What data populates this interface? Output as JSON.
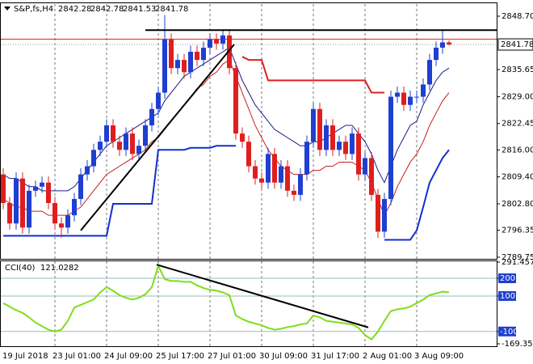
{
  "chart_data": {
    "type": "candlestick",
    "title": "S&P,fs,H4",
    "categories": [
      "19 Jul 2018",
      null,
      null,
      null,
      null,
      null,
      null,
      null,
      "23 Jul 01:00",
      null,
      null,
      null,
      null,
      null,
      null,
      null,
      "24 Jul 09:00",
      null,
      null,
      null,
      null,
      null,
      null,
      null,
      "25 Jul 17:00",
      null,
      null,
      null,
      null,
      null,
      null,
      null,
      "27 Jul 01:00",
      null,
      null,
      null,
      null,
      null,
      null,
      null,
      "30 Jul 09:00",
      null,
      null,
      null,
      null,
      null,
      null,
      null,
      "31 Jul 17:00",
      null,
      null,
      null,
      null,
      null,
      null,
      null,
      "2 Aug 01:00",
      null,
      null,
      null,
      null,
      null,
      null,
      null,
      "3 Aug 09:00",
      null,
      null,
      null,
      null,
      null
    ],
    "ohlc": [
      [
        2810,
        2811.5,
        2801.5,
        2803
      ],
      [
        2803,
        2804.5,
        2796.5,
        2798
      ],
      [
        2798,
        2810.5,
        2796.5,
        2809
      ],
      [
        2809,
        2810.5,
        2795.5,
        2797
      ],
      [
        2797,
        2807.5,
        2795.5,
        2806
      ],
      [
        2806,
        2808.5,
        2804.5,
        2807
      ],
      [
        2807,
        2809.5,
        2805.5,
        2808
      ],
      [
        2808,
        2809.5,
        2801.5,
        2803
      ],
      [
        2803,
        2804.5,
        2796.5,
        2798
      ],
      [
        2798,
        2799.5,
        2794.5,
        2797
      ],
      [
        2797,
        2801.5,
        2795.5,
        2800
      ],
      [
        2800,
        2805.5,
        2798.5,
        2804
      ],
      [
        2804,
        2811.5,
        2802.5,
        2810
      ],
      [
        2810,
        2813.5,
        2808.5,
        2812
      ],
      [
        2812,
        2817.5,
        2810.5,
        2816
      ],
      [
        2816,
        2819.5,
        2814.5,
        2818
      ],
      [
        2818,
        2823.5,
        2816.5,
        2822
      ],
      [
        2822,
        2823.5,
        2816.5,
        2818
      ],
      [
        2818,
        2819.5,
        2814.5,
        2816
      ],
      [
        2816,
        2821.5,
        2814.5,
        2820
      ],
      [
        2820,
        2821.5,
        2813.5,
        2815
      ],
      [
        2815,
        2818.5,
        2813.5,
        2817
      ],
      [
        2817,
        2823.5,
        2815.5,
        2822
      ],
      [
        2822,
        2827.5,
        2820.5,
        2826
      ],
      [
        2826,
        2831.5,
        2824.5,
        2830
      ],
      [
        2830,
        2849,
        2828.5,
        2843
      ],
      [
        2843,
        2844.5,
        2834.5,
        2836
      ],
      [
        2836,
        2839.5,
        2834.5,
        2838
      ],
      [
        2838,
        2839.5,
        2833.5,
        2835
      ],
      [
        2835,
        2841.5,
        2833.5,
        2840
      ],
      [
        2840,
        2841.5,
        2836.5,
        2838
      ],
      [
        2838,
        2842.5,
        2836.5,
        2841
      ],
      [
        2841,
        2844.5,
        2839.5,
        2843
      ],
      [
        2843,
        2844.5,
        2840.5,
        2842
      ],
      [
        2842,
        2845.5,
        2840.5,
        2844
      ],
      [
        2844,
        2845.5,
        2834.5,
        2836
      ],
      [
        2836,
        2837.5,
        2818.5,
        2820
      ],
      [
        2820,
        2821.5,
        2816.5,
        2818
      ],
      [
        2818,
        2819.5,
        2810.5,
        2812
      ],
      [
        2812,
        2813.5,
        2807.5,
        2809
      ],
      [
        2809,
        2810.5,
        2806.5,
        2808
      ],
      [
        2808,
        2816.5,
        2806.5,
        2815
      ],
      [
        2815,
        2816.5,
        2806.5,
        2808
      ],
      [
        2808,
        2813.5,
        2806.5,
        2812
      ],
      [
        2812,
        2813.5,
        2804.5,
        2806
      ],
      [
        2806,
        2807.5,
        2803.5,
        2805
      ],
      [
        2805,
        2811.5,
        2803.5,
        2810
      ],
      [
        2810,
        2819.5,
        2808.5,
        2818
      ],
      [
        2818,
        2827.5,
        2816.5,
        2826
      ],
      [
        2826,
        2827.5,
        2814.5,
        2816
      ],
      [
        2816,
        2823.5,
        2814.5,
        2822
      ],
      [
        2822,
        2823.5,
        2814.5,
        2816
      ],
      [
        2816,
        2819.5,
        2814.5,
        2818
      ],
      [
        2818,
        2819.5,
        2813.5,
        2815
      ],
      [
        2815,
        2821.5,
        2813.5,
        2820
      ],
      [
        2820,
        2821.5,
        2808.5,
        2810
      ],
      [
        2810,
        2815.5,
        2808.5,
        2814
      ],
      [
        2814,
        2815.5,
        2803.5,
        2805
      ],
      [
        2805,
        2806.5,
        2794.5,
        2796
      ],
      [
        2796,
        2805.5,
        2794.5,
        2804
      ],
      [
        2804,
        2830.5,
        2802.5,
        2829
      ],
      [
        2829,
        2831.5,
        2827.5,
        2830
      ],
      [
        2830,
        2831.5,
        2825.5,
        2827
      ],
      [
        2827,
        2830.5,
        2825.5,
        2829
      ],
      [
        2829,
        2830.5,
        2827.5,
        2829
      ],
      [
        2829,
        2833.5,
        2827.5,
        2832
      ],
      [
        2832,
        2839.5,
        2830.5,
        2838
      ],
      [
        2838,
        2842.5,
        2836.5,
        2841
      ],
      [
        2841,
        2845.5,
        2839.5,
        2842.28
      ],
      [
        2842.28,
        2842.78,
        2841.53,
        2841.78
      ]
    ],
    "up_color": "#1f3fd0",
    "down_color": "#e01e1e",
    "ylim": [
      2789.35,
      2851.67
    ],
    "yticks": [
      {
        "value": 2848.7,
        "label": "2848.70"
      },
      2835.65,
      {
        "value": 2829,
        "label": "2829.00"
      },
      2822.45,
      {
        "value": 2816,
        "label": "2816.00"
      },
      {
        "value": 2809.4,
        "label": "2809.40"
      },
      {
        "value": 2802.8,
        "label": "2802.80"
      },
      2796.35,
      2789.75
    ],
    "last_price": 2841.78,
    "ask_line": 2843.1,
    "lines": [
      {
        "color": "#1a1a8c",
        "width": 1,
        "values": [
          2810,
          2809,
          2809,
          2808,
          2807,
          2807,
          2806,
          2806,
          2806,
          2806,
          2806,
          2807,
          2809,
          2811,
          2813,
          2815,
          2817,
          2818,
          2819,
          2820,
          2821,
          2822,
          2823,
          2824,
          2825,
          2828,
          2830,
          2832,
          2834,
          2835,
          2836,
          2837,
          2838,
          2839,
          2840,
          2841,
          2837,
          2833,
          2830,
          2827,
          2825,
          2823,
          2821,
          2820,
          2819,
          2818,
          2817,
          2817,
          2818,
          2818,
          2819,
          2820,
          2821,
          2822,
          2822,
          2820,
          2818,
          2815,
          2811,
          2808,
          2812,
          2816,
          2819,
          2822,
          2823,
          2827,
          2830,
          2833,
          2835,
          2836
        ]
      },
      {
        "color": "#c81e1e",
        "width": 1,
        "values": [
          2804,
          2803,
          2802,
          2802,
          2801,
          2801,
          2801,
          2800,
          2800,
          2800,
          2800,
          2801,
          2802,
          2804,
          2806,
          2808,
          2810,
          2811,
          2812,
          2813,
          2814,
          2815,
          2816,
          2818,
          2819,
          2821,
          2823,
          2825,
          2827,
          2829,
          2831,
          2832,
          2834,
          2835,
          2837,
          2838,
          2834,
          2830,
          2826,
          2822,
          2819,
          2816,
          2814,
          2812,
          2811,
          2810,
          2810,
          2810,
          2811,
          2811,
          2812,
          2812,
          2813,
          2813,
          2813,
          2812,
          2811,
          2808,
          2804,
          2800,
          2803,
          2807,
          2810,
          2813,
          2815,
          2818,
          2822,
          2825,
          2828,
          2830
        ]
      },
      {
        "color": "#1030d0",
        "width": 2,
        "values": [
          2795,
          2795,
          2795,
          2795,
          2795,
          2795,
          2795,
          2795,
          2795,
          2795,
          2795,
          2795,
          2795,
          2795,
          2795,
          2795,
          2795,
          2802.8,
          2802.8,
          2802.8,
          2802.8,
          2802.8,
          2802.8,
          2802.8,
          2816,
          2816,
          2816,
          2816,
          2816,
          2816.5,
          2816.5,
          2816.5,
          2816.5,
          2817,
          2817,
          2817,
          2817,
          null,
          null,
          null,
          null,
          null,
          null,
          null,
          null,
          null,
          null,
          null,
          null,
          null,
          null,
          null,
          null,
          null,
          null,
          null,
          null,
          null,
          null,
          2794,
          2794,
          2794,
          2794,
          2794,
          2796.3,
          2802,
          2808,
          2811,
          2814,
          2816
        ]
      },
      {
        "color": "#e01e1e",
        "width": 2,
        "values": [
          null,
          null,
          null,
          null,
          null,
          null,
          null,
          null,
          null,
          null,
          null,
          null,
          null,
          null,
          null,
          null,
          null,
          null,
          null,
          null,
          null,
          null,
          null,
          null,
          null,
          null,
          null,
          null,
          null,
          null,
          null,
          null,
          null,
          null,
          null,
          null,
          null,
          2838.8,
          2838,
          2838,
          2838,
          2833,
          2833,
          2833,
          2833,
          2833,
          2833,
          2833,
          2833,
          2833,
          2833,
          2833,
          2833,
          2833,
          2833,
          2833,
          2833,
          2830,
          2830,
          2830,
          null,
          null,
          null,
          null,
          null,
          null,
          null,
          null,
          null,
          null
        ]
      }
    ],
    "trendlines": [
      {
        "x": [
          12,
          35.75
        ],
        "y": [
          2796.3,
          2841.8
        ]
      },
      {
        "x": [
          22,
          76.4
        ],
        "y": [
          2845.3,
          2845.3
        ]
      }
    ],
    "cci": {
      "label": "CCI(40)",
      "color": "#7fdd1a",
      "values": [
        60,
        40,
        20,
        5,
        -20,
        -50,
        -70,
        -90,
        -100,
        -90,
        -40,
        35,
        50,
        65,
        80,
        120,
        150,
        130,
        105,
        90,
        80,
        90,
        110,
        150,
        270,
        195,
        185,
        185,
        180,
        180,
        160,
        145,
        135,
        130,
        120,
        105,
        -10,
        -30,
        -45,
        -55,
        -65,
        -80,
        -90,
        -85,
        -75,
        -70,
        -60,
        -55,
        -10,
        -20,
        -40,
        -45,
        -50,
        -55,
        -60,
        -80,
        -120,
        -145,
        -100,
        -40,
        15,
        25,
        30,
        40,
        60,
        80,
        105,
        115,
        125,
        121.0282
      ],
      "ylim": [
        -169.3548,
        291.457
      ],
      "yticks": [
        291.457,
        200,
        100,
        -100,
        -169.3548
      ],
      "trendline": {
        "x": [
          23.75,
          56.5
        ],
        "y": [
          277,
          -77
        ]
      }
    }
  }
}
